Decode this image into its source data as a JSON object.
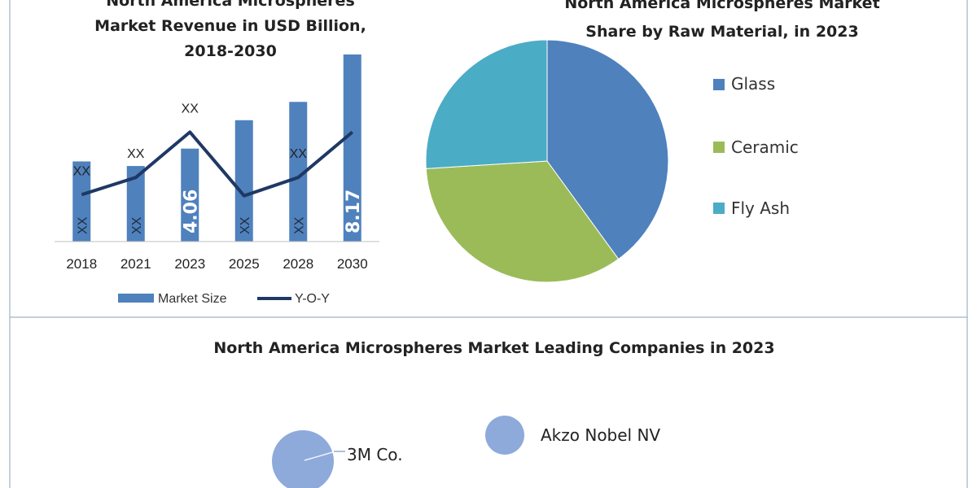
{
  "chart_data": [
    {
      "type": "bar",
      "title_lines": [
        "North America Microspheres",
        "Market Revenue in USD Billion,",
        "2018-2030"
      ],
      "categories": [
        "2018",
        "2021",
        "2023",
        "2025",
        "2028",
        "2030"
      ],
      "series": [
        {
          "name": "Market Size",
          "type": "bar",
          "color": "#4f81bd",
          "values": [
            3.5,
            3.3,
            4.06,
            5.3,
            6.1,
            8.17
          ],
          "data_labels": [
            "XX",
            "XX",
            "4.06",
            "XX",
            "XX",
            "8.17"
          ]
        },
        {
          "name": "Y-O-Y",
          "type": "line",
          "color": "#1f3864",
          "values": [
            2.05,
            2.8,
            4.78,
            2.0,
            2.8,
            4.78
          ],
          "data_labels": [
            "XX",
            "XX",
            "XX",
            "",
            "XX",
            ""
          ]
        }
      ],
      "ylim": [
        0,
        8.17
      ],
      "legend_position": "bottom",
      "grid": false
    },
    {
      "type": "pie",
      "title_lines": [
        "North America Microspheres Market",
        "Share by Raw Material, in 2023"
      ],
      "slices": [
        {
          "label": "Glass",
          "value": 40,
          "color": "#4f81bd"
        },
        {
          "label": "Ceramic",
          "value": 34,
          "color": "#9bbb59"
        },
        {
          "label": "Fly Ash",
          "value": 26,
          "color": "#4bacc6"
        }
      ],
      "legend_position": "right"
    },
    {
      "type": "bubble",
      "title": "North America Microspheres Market Leading Companies in 2023",
      "bubbles": [
        {
          "label": "3M Co.",
          "color": "#8eaadb"
        },
        {
          "label": "Akzo Nobel NV",
          "color": "#8eaadb"
        }
      ]
    }
  ]
}
